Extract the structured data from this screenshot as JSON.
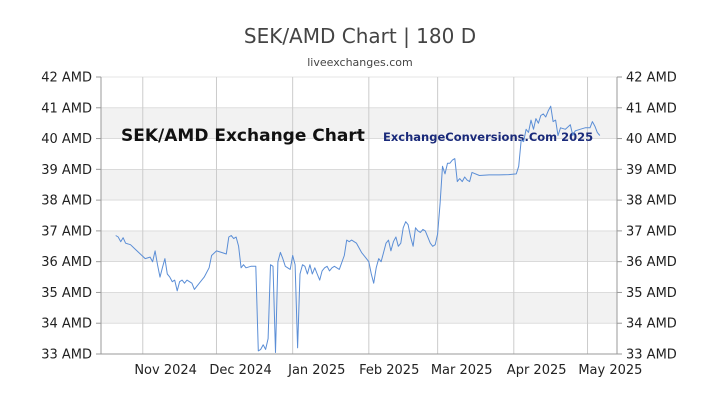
{
  "header": {
    "title": "SEK/AMD Chart | 180 D",
    "subtitle": "liveexchanges.com"
  },
  "watermarks": {
    "left": "SEK/AMD Exchange Chart",
    "right": "ExchangeConversions.Com 2025"
  },
  "colors": {
    "line": "#5b8ed6",
    "band": "#f2f2f2",
    "grid": "#cccccc",
    "axis": "#999999"
  },
  "chart_data": {
    "type": "line",
    "title": "SEK/AMD Chart | 180 D",
    "xlabel": "",
    "ylabel": "",
    "ylim": [
      33,
      42
    ],
    "xlim": [
      "2024-10-15",
      "2025-05-13"
    ],
    "y_ticks": [
      33,
      34,
      35,
      36,
      37,
      38,
      39,
      40,
      41,
      42
    ],
    "y_tick_labels": [
      "33 AMD",
      "34 AMD",
      "35 AMD",
      "36 AMD",
      "37 AMD",
      "38 AMD",
      "39 AMD",
      "40 AMD",
      "41 AMD",
      "42 AMD"
    ],
    "y_tick_labels_right": [
      "33 AMD",
      "34 AMD",
      "35 AMD",
      "36 AMD",
      "37 AMD",
      "38 AMD",
      "39 AMD",
      "40 AMD",
      "41 AMD",
      "42 AMD"
    ],
    "x_ticks": [
      {
        "date": "2024-11-01",
        "label": "Nov 2024"
      },
      {
        "date": "2024-12-01",
        "label": "Dec 2024"
      },
      {
        "date": "2025-01-01",
        "label": "Jan 2025"
      },
      {
        "date": "2025-02-01",
        "label": "Feb 2025"
      },
      {
        "date": "2025-03-01",
        "label": "Mar 2025"
      },
      {
        "date": "2025-04-01",
        "label": "Apr 2025"
      },
      {
        "date": "2025-05-01",
        "label": "May 2025"
      }
    ],
    "grid": true,
    "series": [
      {
        "color": "#5b8ed6",
        "points": [
          [
            "2024-10-21",
            36.85
          ],
          [
            "2024-10-22",
            36.8
          ],
          [
            "2024-10-23",
            36.65
          ],
          [
            "2024-10-24",
            36.78
          ],
          [
            "2024-10-25",
            36.6
          ],
          [
            "2024-10-27",
            36.55
          ],
          [
            "2024-10-29",
            36.4
          ],
          [
            "2024-10-31",
            36.25
          ],
          [
            "2024-11-02",
            36.1
          ],
          [
            "2024-11-04",
            36.15
          ],
          [
            "2024-11-05",
            36.0
          ],
          [
            "2024-11-06",
            36.35
          ],
          [
            "2024-11-07",
            35.9
          ],
          [
            "2024-11-08",
            35.5
          ],
          [
            "2024-11-09",
            35.8
          ],
          [
            "2024-11-10",
            36.1
          ],
          [
            "2024-11-11",
            35.6
          ],
          [
            "2024-11-12",
            35.5
          ],
          [
            "2024-11-13",
            35.35
          ],
          [
            "2024-11-14",
            35.4
          ],
          [
            "2024-11-15",
            35.05
          ],
          [
            "2024-11-16",
            35.35
          ],
          [
            "2024-11-17",
            35.4
          ],
          [
            "2024-11-18",
            35.3
          ],
          [
            "2024-11-19",
            35.4
          ],
          [
            "2024-11-20",
            35.35
          ],
          [
            "2024-11-21",
            35.3
          ],
          [
            "2024-11-22",
            35.1
          ],
          [
            "2024-11-23",
            35.2
          ],
          [
            "2024-11-24",
            35.3
          ],
          [
            "2024-11-26",
            35.5
          ],
          [
            "2024-11-28",
            35.8
          ],
          [
            "2024-11-29",
            36.2
          ],
          [
            "2024-12-01",
            36.35
          ],
          [
            "2024-12-03",
            36.3
          ],
          [
            "2024-12-05",
            36.25
          ],
          [
            "2024-12-06",
            36.8
          ],
          [
            "2024-12-07",
            36.85
          ],
          [
            "2024-12-08",
            36.75
          ],
          [
            "2024-12-09",
            36.8
          ],
          [
            "2024-12-10",
            36.5
          ],
          [
            "2024-12-11",
            35.8
          ],
          [
            "2024-12-12",
            35.9
          ],
          [
            "2024-12-13",
            35.8
          ],
          [
            "2024-12-15",
            35.85
          ],
          [
            "2024-12-17",
            35.85
          ],
          [
            "2024-12-18",
            33.1
          ],
          [
            "2024-12-19",
            33.15
          ],
          [
            "2024-12-20",
            33.3
          ],
          [
            "2024-12-21",
            33.15
          ],
          [
            "2024-12-22",
            33.5
          ],
          [
            "2024-12-23",
            35.9
          ],
          [
            "2024-12-24",
            35.85
          ],
          [
            "2024-12-25",
            33.05
          ],
          [
            "2024-12-26",
            36.0
          ],
          [
            "2024-12-27",
            36.3
          ],
          [
            "2024-12-28",
            36.1
          ],
          [
            "2024-12-29",
            35.85
          ],
          [
            "2024-12-31",
            35.75
          ],
          [
            "2025-01-01",
            36.2
          ],
          [
            "2025-01-02",
            35.9
          ],
          [
            "2025-01-03",
            33.2
          ],
          [
            "2025-01-04",
            35.6
          ],
          [
            "2025-01-05",
            35.9
          ],
          [
            "2025-01-06",
            35.85
          ],
          [
            "2025-01-07",
            35.6
          ],
          [
            "2025-01-08",
            35.9
          ],
          [
            "2025-01-09",
            35.6
          ],
          [
            "2025-01-10",
            35.8
          ],
          [
            "2025-01-11",
            35.6
          ],
          [
            "2025-01-12",
            35.4
          ],
          [
            "2025-01-13",
            35.7
          ],
          [
            "2025-01-14",
            35.8
          ],
          [
            "2025-01-15",
            35.85
          ],
          [
            "2025-01-16",
            35.7
          ],
          [
            "2025-01-17",
            35.8
          ],
          [
            "2025-01-18",
            35.85
          ],
          [
            "2025-01-20",
            35.75
          ],
          [
            "2025-01-22",
            36.2
          ],
          [
            "2025-01-23",
            36.7
          ],
          [
            "2025-01-24",
            36.65
          ],
          [
            "2025-01-25",
            36.7
          ],
          [
            "2025-01-27",
            36.6
          ],
          [
            "2025-01-29",
            36.3
          ],
          [
            "2025-01-31",
            36.1
          ],
          [
            "2025-02-01",
            36.0
          ],
          [
            "2025-02-02",
            35.6
          ],
          [
            "2025-02-03",
            35.3
          ],
          [
            "2025-02-04",
            35.8
          ],
          [
            "2025-02-05",
            36.1
          ],
          [
            "2025-02-06",
            36.0
          ],
          [
            "2025-02-07",
            36.3
          ],
          [
            "2025-02-08",
            36.6
          ],
          [
            "2025-02-09",
            36.7
          ],
          [
            "2025-02-10",
            36.35
          ],
          [
            "2025-02-11",
            36.65
          ],
          [
            "2025-02-12",
            36.8
          ],
          [
            "2025-02-13",
            36.5
          ],
          [
            "2025-02-14",
            36.6
          ],
          [
            "2025-02-15",
            37.1
          ],
          [
            "2025-02-16",
            37.3
          ],
          [
            "2025-02-17",
            37.2
          ],
          [
            "2025-02-18",
            36.8
          ],
          [
            "2025-02-19",
            36.5
          ],
          [
            "2025-02-20",
            37.1
          ],
          [
            "2025-02-21",
            37.0
          ],
          [
            "2025-02-22",
            36.95
          ],
          [
            "2025-02-23",
            37.05
          ],
          [
            "2025-02-24",
            37.0
          ],
          [
            "2025-02-26",
            36.6
          ],
          [
            "2025-02-27",
            36.5
          ],
          [
            "2025-02-28",
            36.55
          ],
          [
            "2025-03-01",
            36.9
          ],
          [
            "2025-03-02",
            37.9
          ],
          [
            "2025-03-03",
            39.1
          ],
          [
            "2025-03-04",
            38.85
          ],
          [
            "2025-03-05",
            39.2
          ],
          [
            "2025-03-06",
            39.2
          ],
          [
            "2025-03-07",
            39.3
          ],
          [
            "2025-03-08",
            39.35
          ],
          [
            "2025-03-09",
            38.6
          ],
          [
            "2025-03-10",
            38.7
          ],
          [
            "2025-03-11",
            38.6
          ],
          [
            "2025-03-12",
            38.75
          ],
          [
            "2025-03-13",
            38.65
          ],
          [
            "2025-03-14",
            38.6
          ],
          [
            "2025-03-15",
            38.9
          ],
          [
            "2025-03-18",
            38.8
          ],
          [
            "2025-03-22",
            38.82
          ],
          [
            "2025-03-26",
            38.82
          ],
          [
            "2025-03-30",
            38.83
          ],
          [
            "2025-04-02",
            38.85
          ],
          [
            "2025-04-03",
            39.1
          ],
          [
            "2025-04-04",
            39.95
          ],
          [
            "2025-04-05",
            39.9
          ],
          [
            "2025-04-06",
            40.3
          ],
          [
            "2025-04-07",
            40.2
          ],
          [
            "2025-04-08",
            40.6
          ],
          [
            "2025-04-09",
            40.3
          ],
          [
            "2025-04-10",
            40.65
          ],
          [
            "2025-04-11",
            40.5
          ],
          [
            "2025-04-12",
            40.75
          ],
          [
            "2025-04-13",
            40.8
          ],
          [
            "2025-04-14",
            40.7
          ],
          [
            "2025-04-15",
            40.9
          ],
          [
            "2025-04-16",
            41.05
          ],
          [
            "2025-04-17",
            40.55
          ],
          [
            "2025-04-18",
            40.6
          ],
          [
            "2025-04-19",
            40.1
          ],
          [
            "2025-04-20",
            40.35
          ],
          [
            "2025-04-22",
            40.3
          ],
          [
            "2025-04-24",
            40.45
          ],
          [
            "2025-04-25",
            40.1
          ],
          [
            "2025-04-26",
            40.25
          ],
          [
            "2025-04-28",
            40.3
          ],
          [
            "2025-04-30",
            40.35
          ],
          [
            "2025-05-02",
            40.35
          ],
          [
            "2025-05-03",
            40.55
          ],
          [
            "2025-05-04",
            40.4
          ],
          [
            "2025-05-05",
            40.2
          ],
          [
            "2025-05-06",
            40.1
          ]
        ]
      }
    ]
  }
}
